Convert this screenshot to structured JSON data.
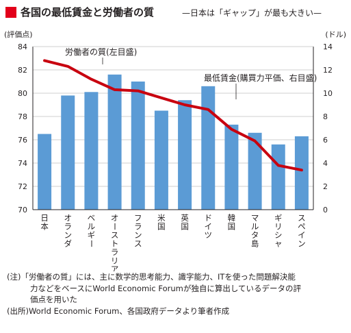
{
  "header": {
    "title": "各国の最低賃金と労働者の質",
    "subtitle": "—日本は「ギャップ」が最も大きい—"
  },
  "colors": {
    "accent": "#e2001a",
    "bar": "#5b9bd5",
    "line": "#c8000f",
    "grid": "#bfbfbf"
  },
  "chart_data": {
    "type": "bar",
    "categories": [
      "日本",
      "オランダ",
      "ベルギー",
      "オーストラリア",
      "フランス",
      "米国",
      "英国",
      "ドイツ",
      "韓国",
      "マルタ島",
      "ギリシャ",
      "スペイン"
    ],
    "left_axis_label": "(評価点)",
    "right_axis_label": "(ドル)",
    "yleft_ticks": [
      "84",
      "82",
      "80",
      "78",
      "76",
      "74",
      "72",
      "70"
    ],
    "yright_ticks": [
      "14",
      "12",
      "10",
      "8",
      "6",
      "4",
      "2",
      "0"
    ],
    "ylim_left": [
      70,
      84
    ],
    "ylim_right": [
      0,
      14
    ],
    "grid": true,
    "series": [
      {
        "name": "労働者の質(左目盛)",
        "type": "bar",
        "axis": "left",
        "values": [
          76.5,
          79.8,
          80.1,
          81.6,
          81.0,
          78.5,
          79.4,
          80.6,
          77.3,
          76.6,
          75.6,
          76.3
        ]
      },
      {
        "name": "最低賃金(購買力平価、右目盛)",
        "type": "line",
        "axis": "right",
        "values": [
          12.8,
          12.3,
          11.2,
          10.3,
          10.2,
          9.6,
          9.0,
          8.6,
          6.9,
          5.9,
          3.8,
          3.4
        ]
      }
    ]
  },
  "notes": {
    "note1_line1": "(注)「労働者の質」には、主に数学的思考能力、識字能力、ITを使った問題解決能",
    "note1_line2": "力などをベースにWorld Economic Forumが独自に算出しているデータの評",
    "note1_line3": "価点を用いた",
    "source": "(出所)World Economic Forum、各国政府データより筆者作成"
  }
}
